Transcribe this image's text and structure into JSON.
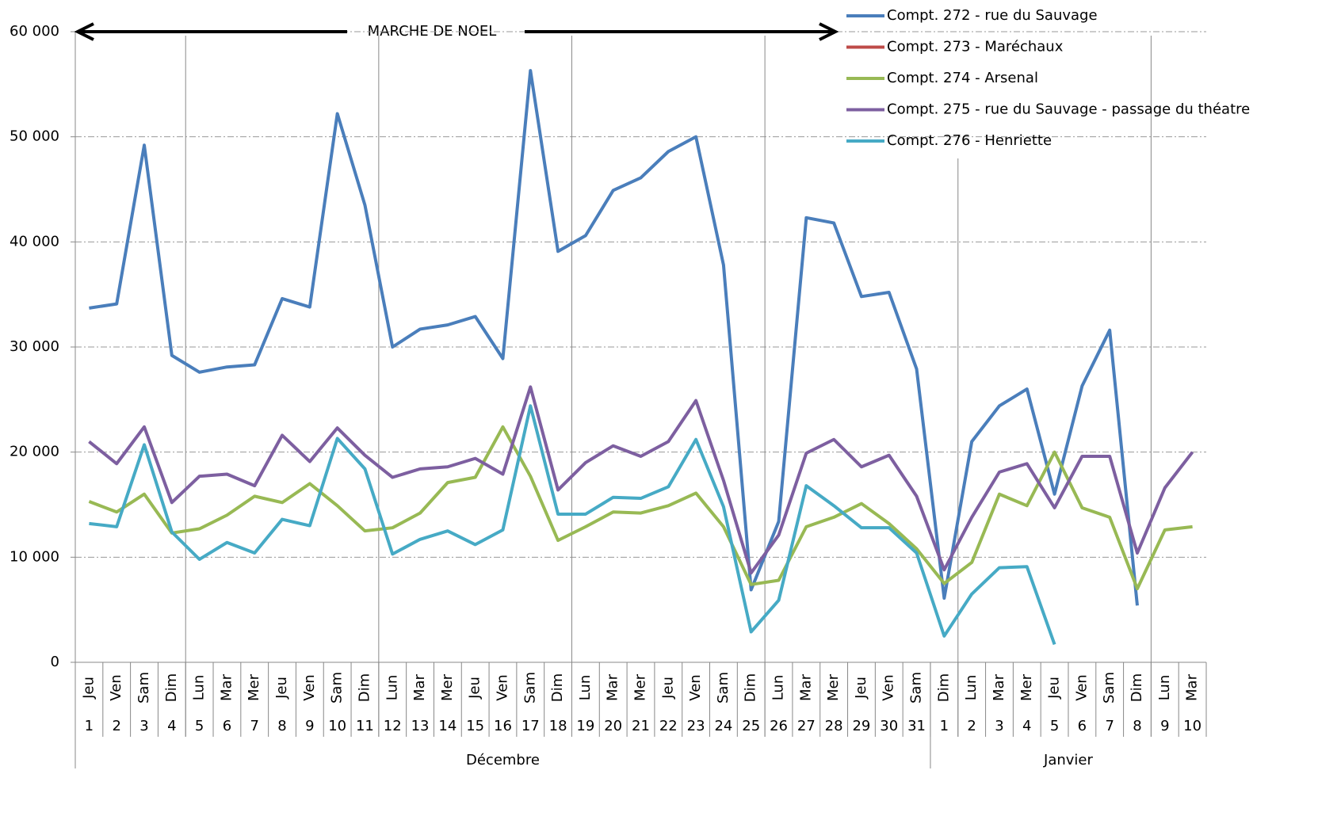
{
  "chart_data": {
    "type": "line",
    "annotation": "MARCHE DE NOEL",
    "categories": [
      "1",
      "2",
      "3",
      "4",
      "5",
      "6",
      "7",
      "8",
      "9",
      "10",
      "11",
      "12",
      "13",
      "14",
      "15",
      "16",
      "17",
      "18",
      "19",
      "20",
      "21",
      "22",
      "23",
      "24",
      "25",
      "26",
      "27",
      "28",
      "29",
      "30",
      "31",
      "1",
      "2",
      "3",
      "4",
      "5",
      "6",
      "7",
      "8",
      "9",
      "10"
    ],
    "weekdays": [
      "Jeu",
      "Ven",
      "Sam",
      "Dim",
      "Lun",
      "Mar",
      "Mer",
      "Jeu",
      "Ven",
      "Sam",
      "Dim",
      "Lun",
      "Mar",
      "Mer",
      "Jeu",
      "Ven",
      "Sam",
      "Dim",
      "Lun",
      "Mar",
      "Mer",
      "Jeu",
      "Ven",
      "Sam",
      "Dim",
      "Lun",
      "Mar",
      "Mer",
      "Jeu",
      "Ven",
      "Sam",
      "Dim",
      "Lun",
      "Mar",
      "Mer",
      "Jeu",
      "Ven",
      "Sam",
      "Dim",
      "Lun",
      "Mar"
    ],
    "months": [
      "Décembre",
      "Janvier"
    ],
    "series": [
      {
        "name": "Compt. 272 - rue du Sauvage",
        "color": "#4a7ebb",
        "values": [
          33700,
          34100,
          49200,
          29200,
          27600,
          28100,
          28300,
          34600,
          33800,
          52200,
          43500,
          30000,
          31700,
          32100,
          32900,
          28900,
          56300,
          39100,
          40600,
          44900,
          46100,
          48600,
          50000,
          37800,
          6900,
          13400,
          42300,
          41800,
          34800,
          35200,
          27900,
          6100,
          21000,
          24400,
          26000,
          16000,
          26300,
          31600,
          5400,
          null,
          null
        ]
      },
      {
        "name": "Compt. 273 - Maréchaux",
        "color": "#be4b48",
        "values": [
          null,
          null,
          null,
          null,
          null,
          null,
          null,
          null,
          null,
          null,
          null,
          null,
          null,
          null,
          null,
          null,
          null,
          null,
          null,
          null,
          null,
          null,
          null,
          null,
          null,
          null,
          null,
          null,
          null,
          null,
          null,
          null,
          null,
          null,
          null,
          null,
          null,
          null,
          null,
          null,
          null
        ]
      },
      {
        "name": "Compt. 274 - Arsenal",
        "color": "#98b954",
        "values": [
          15300,
          14300,
          16000,
          12300,
          12700,
          14000,
          15800,
          15200,
          17000,
          14900,
          12500,
          12800,
          14200,
          17100,
          17600,
          22400,
          17700,
          11600,
          12900,
          14300,
          14200,
          14900,
          16100,
          12900,
          7400,
          7800,
          12900,
          13800,
          15100,
          13200,
          10800,
          7500,
          9500,
          16000,
          14900,
          20000,
          14700,
          13800,
          7000,
          12600,
          12900
        ]
      },
      {
        "name": "Compt. 275 - rue du Sauvage  - passage  du théatre",
        "color": "#7d5fa0",
        "values": [
          21000,
          18900,
          22400,
          15200,
          17700,
          17900,
          16800,
          21600,
          19100,
          22300,
          19700,
          17600,
          18400,
          18600,
          19400,
          17900,
          26200,
          16400,
          19000,
          20600,
          19600,
          21000,
          24900,
          17300,
          8500,
          12100,
          19900,
          21200,
          18600,
          19700,
          15800,
          8800,
          13800,
          18100,
          18900,
          14700,
          19600,
          19600,
          10400,
          16600,
          20000
        ]
      },
      {
        "name": "Compt. 276 - Henriette",
        "color": "#46aac5",
        "values": [
          13200,
          12900,
          20700,
          12400,
          9800,
          11400,
          10400,
          13600,
          13000,
          21300,
          18400,
          10300,
          11700,
          12500,
          11200,
          12600,
          24400,
          14100,
          14100,
          15700,
          15600,
          16700,
          21200,
          14800,
          2900,
          5900,
          16800,
          14900,
          12800,
          12800,
          10400,
          2500,
          6500,
          9000,
          9100,
          1700,
          null,
          null,
          null,
          null,
          null
        ]
      }
    ],
    "ylim": [
      0,
      60000
    ],
    "yticks": [
      0,
      {
        "value": 10000,
        "label": "10 000"
      },
      {
        "value": 20000,
        "label": "20 000"
      },
      {
        "value": 30000,
        "label": "30 000"
      },
      {
        "value": 40000,
        "label": "40 000"
      },
      {
        "value": 50000,
        "label": "50 000"
      },
      {
        "value": 60000,
        "label": "60 000"
      }
    ],
    "grid": true,
    "legend": "top-right"
  }
}
